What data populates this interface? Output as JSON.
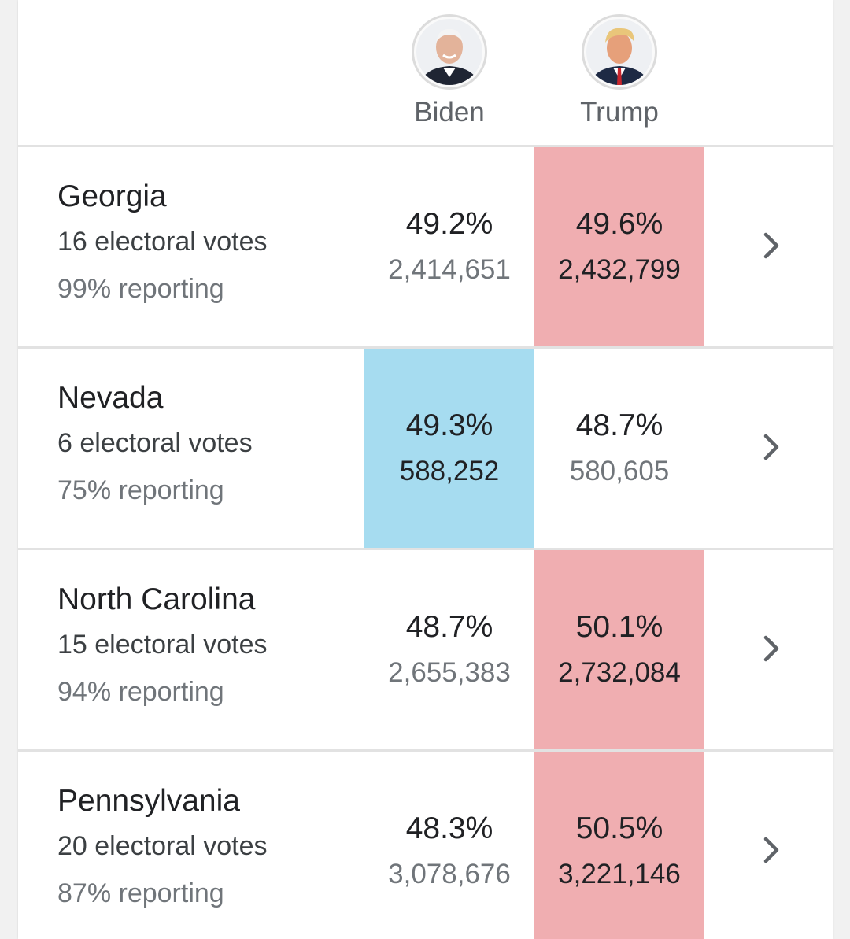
{
  "candidates": [
    {
      "name": "Biden",
      "icon": "biden-portrait-icon"
    },
    {
      "name": "Trump",
      "icon": "trump-portrait-icon"
    }
  ],
  "colors": {
    "democrat_lead": "#a6dcf0",
    "republican_lead": "#f0aeb1"
  },
  "states": [
    {
      "name": "Georgia",
      "electoral": "16 electoral votes",
      "reporting": "99% reporting",
      "biden_pct": "49.2%",
      "biden_votes": "2,414,651",
      "trump_pct": "49.6%",
      "trump_votes": "2,432,799",
      "leader": "Trump"
    },
    {
      "name": "Nevada",
      "electoral": "6 electoral votes",
      "reporting": "75% reporting",
      "biden_pct": "49.3%",
      "biden_votes": "588,252",
      "trump_pct": "48.7%",
      "trump_votes": "580,605",
      "leader": "Biden"
    },
    {
      "name": "North Carolina",
      "electoral": "15 electoral votes",
      "reporting": "94% reporting",
      "biden_pct": "48.7%",
      "biden_votes": "2,655,383",
      "trump_pct": "50.1%",
      "trump_votes": "2,732,084",
      "leader": "Trump"
    },
    {
      "name": "Pennsylvania",
      "electoral": "20 electoral votes",
      "reporting": "87% reporting",
      "biden_pct": "48.3%",
      "biden_votes": "3,078,676",
      "trump_pct": "50.5%",
      "trump_votes": "3,221,146",
      "leader": "Trump"
    }
  ]
}
